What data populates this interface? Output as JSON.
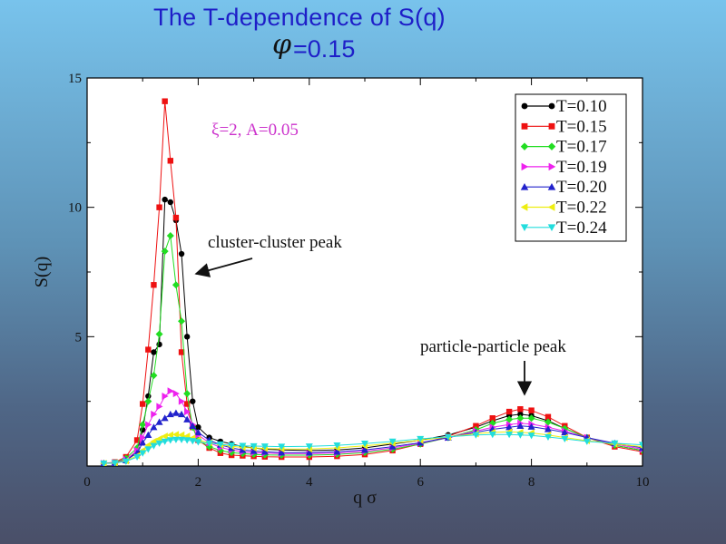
{
  "title": "The T-dependence of S(q)",
  "subtitle_symbol": "φ",
  "subtitle_value": "=0.15",
  "chart_data": {
    "type": "line",
    "xlabel": "q σ",
    "ylabel": "S(q)",
    "xlim": [
      0,
      10
    ],
    "ylim": [
      0,
      15
    ],
    "x_ticks": [
      0,
      2,
      4,
      6,
      8,
      10
    ],
    "y_ticks": [
      5,
      10,
      15
    ],
    "grid": false,
    "legend_position": "top-right",
    "annotations": {
      "params": "ξ=2, A=0.05",
      "cluster_peak": "cluster-cluster peak",
      "particle_peak": "particle-particle peak"
    },
    "series": [
      {
        "name": "T=0.10",
        "color": "#000000",
        "marker": "circle",
        "x": [
          0.3,
          0.5,
          0.7,
          0.9,
          1.0,
          1.1,
          1.2,
          1.3,
          1.4,
          1.5,
          1.6,
          1.7,
          1.8,
          1.9,
          2.0,
          2.2,
          2.4,
          2.6,
          2.8,
          3.0,
          3.2,
          3.5,
          4.0,
          4.5,
          5.0,
          5.5,
          6.0,
          6.5,
          7.0,
          7.3,
          7.6,
          7.8,
          8.0,
          8.3,
          8.6,
          9.0,
          9.5,
          10.0
        ],
        "y": [
          0.1,
          0.12,
          0.2,
          0.55,
          1.4,
          2.7,
          4.4,
          4.7,
          10.3,
          10.2,
          9.5,
          8.2,
          5.0,
          2.5,
          1.5,
          1.1,
          0.95,
          0.85,
          0.75,
          0.7,
          0.65,
          0.62,
          0.6,
          0.62,
          0.7,
          0.85,
          1.0,
          1.2,
          1.5,
          1.75,
          1.95,
          2.0,
          1.95,
          1.75,
          1.45,
          1.1,
          0.8,
          0.6
        ]
      },
      {
        "name": "T=0.15",
        "color": "#ee1111",
        "marker": "square",
        "x": [
          0.3,
          0.5,
          0.7,
          0.9,
          1.0,
          1.1,
          1.2,
          1.3,
          1.4,
          1.5,
          1.6,
          1.7,
          1.8,
          1.9,
          2.0,
          2.2,
          2.4,
          2.6,
          2.8,
          3.0,
          3.2,
          3.5,
          4.0,
          4.5,
          5.0,
          5.5,
          6.0,
          6.5,
          7.0,
          7.3,
          7.6,
          7.8,
          8.0,
          8.3,
          8.6,
          9.0,
          9.5,
          10.0
        ],
        "y": [
          0.1,
          0.15,
          0.35,
          1.0,
          2.4,
          4.5,
          7.0,
          10.0,
          14.1,
          11.8,
          9.6,
          4.4,
          2.4,
          1.5,
          1.0,
          0.7,
          0.5,
          0.42,
          0.4,
          0.38,
          0.36,
          0.35,
          0.35,
          0.38,
          0.45,
          0.6,
          0.85,
          1.15,
          1.55,
          1.85,
          2.1,
          2.2,
          2.15,
          1.9,
          1.55,
          1.1,
          0.75,
          0.55
        ]
      },
      {
        "name": "T=0.17",
        "color": "#22dd22",
        "marker": "diamond",
        "x": [
          0.3,
          0.5,
          0.7,
          0.9,
          1.0,
          1.1,
          1.2,
          1.3,
          1.4,
          1.5,
          1.6,
          1.7,
          1.8,
          1.9,
          2.0,
          2.2,
          2.4,
          2.6,
          2.8,
          3.0,
          3.2,
          3.5,
          4.0,
          4.5,
          5.0,
          5.5,
          6.0,
          6.5,
          7.0,
          7.3,
          7.6,
          7.8,
          8.0,
          8.3,
          8.6,
          9.0,
          9.5,
          10.0
        ],
        "y": [
          0.1,
          0.12,
          0.3,
          0.7,
          1.6,
          2.5,
          3.5,
          5.1,
          8.3,
          8.9,
          7.0,
          5.6,
          2.8,
          1.5,
          1.0,
          0.75,
          0.6,
          0.52,
          0.48,
          0.45,
          0.43,
          0.42,
          0.42,
          0.45,
          0.52,
          0.65,
          0.85,
          1.1,
          1.4,
          1.65,
          1.8,
          1.85,
          1.85,
          1.7,
          1.45,
          1.1,
          0.8,
          0.6
        ]
      },
      {
        "name": "T=0.19",
        "color": "#ee22ee",
        "marker": "triangle-right",
        "x": [
          0.3,
          0.5,
          0.7,
          0.9,
          1.0,
          1.1,
          1.2,
          1.3,
          1.4,
          1.5,
          1.6,
          1.7,
          1.8,
          1.9,
          2.0,
          2.2,
          2.4,
          2.6,
          2.8,
          3.0,
          3.2,
          3.5,
          4.0,
          4.5,
          5.0,
          5.5,
          6.0,
          6.5,
          7.0,
          7.3,
          7.6,
          7.8,
          8.0,
          8.3,
          8.6,
          9.0,
          9.5,
          10.0
        ],
        "y": [
          0.1,
          0.12,
          0.25,
          0.6,
          1.1,
          1.6,
          2.0,
          2.3,
          2.7,
          2.9,
          2.8,
          2.5,
          2.1,
          1.6,
          1.2,
          0.9,
          0.72,
          0.62,
          0.55,
          0.52,
          0.5,
          0.48,
          0.48,
          0.5,
          0.57,
          0.7,
          0.88,
          1.1,
          1.35,
          1.5,
          1.6,
          1.65,
          1.62,
          1.5,
          1.35,
          1.1,
          0.85,
          0.65
        ]
      },
      {
        "name": "T=0.20",
        "color": "#2222cc",
        "marker": "triangle-up",
        "x": [
          0.3,
          0.5,
          0.7,
          0.9,
          1.0,
          1.1,
          1.2,
          1.3,
          1.4,
          1.5,
          1.6,
          1.7,
          1.8,
          1.9,
          2.0,
          2.2,
          2.4,
          2.6,
          2.8,
          3.0,
          3.2,
          3.5,
          4.0,
          4.5,
          5.0,
          5.5,
          6.0,
          6.5,
          7.0,
          7.3,
          7.6,
          7.8,
          8.0,
          8.3,
          8.6,
          9.0,
          9.5,
          10.0
        ],
        "y": [
          0.1,
          0.12,
          0.22,
          0.5,
          0.9,
          1.2,
          1.5,
          1.7,
          1.85,
          2.0,
          2.05,
          2.0,
          1.8,
          1.55,
          1.3,
          1.0,
          0.82,
          0.7,
          0.62,
          0.58,
          0.55,
          0.52,
          0.52,
          0.55,
          0.62,
          0.75,
          0.9,
          1.1,
          1.3,
          1.42,
          1.5,
          1.55,
          1.52,
          1.42,
          1.3,
          1.1,
          0.88,
          0.7
        ]
      },
      {
        "name": "T=0.22",
        "color": "#eeee11",
        "marker": "triangle-left",
        "x": [
          0.3,
          0.5,
          0.7,
          0.9,
          1.0,
          1.1,
          1.2,
          1.3,
          1.4,
          1.5,
          1.6,
          1.7,
          1.8,
          1.9,
          2.0,
          2.2,
          2.4,
          2.6,
          2.8,
          3.0,
          3.2,
          3.5,
          4.0,
          4.5,
          5.0,
          5.5,
          6.0,
          6.5,
          7.0,
          7.3,
          7.6,
          7.8,
          8.0,
          8.3,
          8.6,
          9.0,
          9.5,
          10.0
        ],
        "y": [
          0.1,
          0.12,
          0.2,
          0.4,
          0.6,
          0.8,
          0.95,
          1.05,
          1.15,
          1.2,
          1.22,
          1.2,
          1.15,
          1.08,
          1.0,
          0.9,
          0.82,
          0.76,
          0.72,
          0.7,
          0.68,
          0.66,
          0.66,
          0.7,
          0.78,
          0.88,
          1.0,
          1.12,
          1.25,
          1.3,
          1.32,
          1.3,
          1.28,
          1.2,
          1.1,
          0.98,
          0.85,
          0.75
        ]
      },
      {
        "name": "T=0.24",
        "color": "#22dddd",
        "marker": "triangle-down",
        "x": [
          0.3,
          0.5,
          0.7,
          0.9,
          1.0,
          1.1,
          1.2,
          1.3,
          1.4,
          1.5,
          1.6,
          1.7,
          1.8,
          1.9,
          2.0,
          2.2,
          2.4,
          2.6,
          2.8,
          3.0,
          3.2,
          3.5,
          4.0,
          4.5,
          5.0,
          5.5,
          6.0,
          6.5,
          7.0,
          7.3,
          7.6,
          7.8,
          8.0,
          8.3,
          8.6,
          9.0,
          9.5,
          10.0
        ],
        "y": [
          0.1,
          0.12,
          0.18,
          0.35,
          0.5,
          0.65,
          0.78,
          0.88,
          0.95,
          1.0,
          1.02,
          1.02,
          1.0,
          0.97,
          0.93,
          0.88,
          0.84,
          0.8,
          0.78,
          0.77,
          0.76,
          0.75,
          0.76,
          0.8,
          0.87,
          0.95,
          1.05,
          1.13,
          1.2,
          1.22,
          1.22,
          1.2,
          1.18,
          1.12,
          1.05,
          0.95,
          0.88,
          0.82
        ]
      }
    ]
  }
}
